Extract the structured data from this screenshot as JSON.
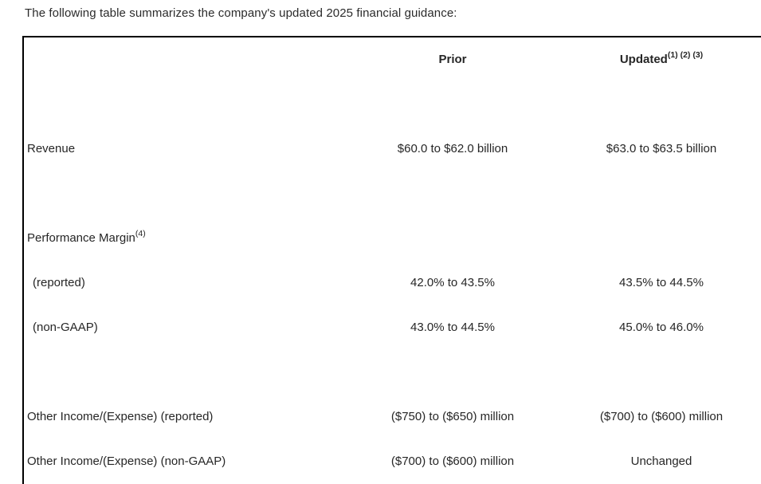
{
  "page": {
    "title": "The following table summarizes the company's updated 2025 financial guidance:"
  },
  "table": {
    "header": {
      "prior": "Prior",
      "updated": "Updated",
      "updated_sup": "(1) (2) (3)"
    },
    "rows": [
      {
        "label": "Revenue",
        "sup": "",
        "prior": "$60.0 to $62.0 billion",
        "updated": "$63.0 to $63.5 billion"
      },
      {
        "label": "Performance Margin",
        "sup": "(4)",
        "prior": "",
        "updated": ""
      },
      {
        "label": "(reported)",
        "sup": "",
        "prior": "42.0% to 43.5%",
        "updated": "43.5% to 44.5%"
      },
      {
        "label": "(non-GAAP)",
        "sup": "",
        "prior": "43.0% to 44.5%",
        "updated": "45.0% to 46.0%"
      },
      {
        "label": "Other Income/(Expense) (reported)",
        "sup": "",
        "prior": "($750) to ($650) million",
        "updated": "($700) to ($600) million"
      },
      {
        "label": "Other Income/(Expense) (non-GAAP)",
        "sup": "",
        "prior": "($700) to ($600) million",
        "updated": "Unchanged"
      }
    ],
    "colors": {
      "text": "#262626",
      "border": "#000000",
      "background": "#ffffff"
    }
  }
}
